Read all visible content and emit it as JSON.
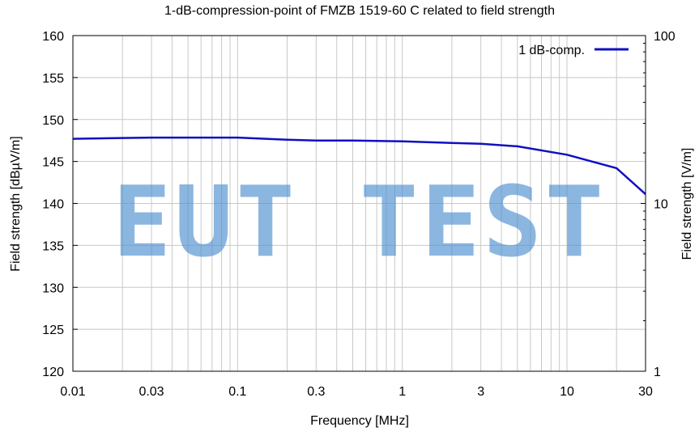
{
  "chart_data": {
    "type": "line",
    "title": "1-dB-compression-point of FMZB 1519-60 C related to field strength",
    "xlabel": "Frequency [MHz]",
    "ylabel": "Field strength [dBµV/m]",
    "y2label": "Field strength [V/m]",
    "xscale": "log",
    "xlim": [
      0.01,
      30
    ],
    "ylim": [
      120,
      160
    ],
    "y2scale": "log",
    "y2lim": [
      1,
      100
    ],
    "grid": true,
    "legend_position": "top-right",
    "x_ticks": [
      {
        "value": 0.01,
        "label": "0.01"
      },
      {
        "value": 0.03,
        "label": "0.03"
      },
      {
        "value": 0.1,
        "label": "0.1"
      },
      {
        "value": 0.3,
        "label": "0.3"
      },
      {
        "value": 1,
        "label": "1"
      },
      {
        "value": 3,
        "label": "3"
      },
      {
        "value": 10,
        "label": "10"
      },
      {
        "value": 30,
        "label": "30"
      }
    ],
    "y_ticks": [
      {
        "value": 120,
        "label": "120"
      },
      {
        "value": 125,
        "label": "125"
      },
      {
        "value": 130,
        "label": "130"
      },
      {
        "value": 135,
        "label": "135"
      },
      {
        "value": 140,
        "label": "140"
      },
      {
        "value": 145,
        "label": "145"
      },
      {
        "value": 150,
        "label": "150"
      },
      {
        "value": 155,
        "label": "155"
      },
      {
        "value": 160,
        "label": "160"
      }
    ],
    "y2_ticks": [
      {
        "value": 1,
        "label": "1"
      },
      {
        "value": 10,
        "label": "10"
      },
      {
        "value": 100,
        "label": "100"
      }
    ],
    "series": [
      {
        "name": "1 dB-comp.",
        "color": "#1010c0",
        "x": [
          0.01,
          0.02,
          0.03,
          0.05,
          0.1,
          0.2,
          0.3,
          0.5,
          1,
          2,
          3,
          5,
          10,
          20,
          30
        ],
        "y": [
          147.7,
          147.8,
          147.85,
          147.85,
          147.85,
          147.6,
          147.5,
          147.5,
          147.4,
          147.2,
          147.1,
          146.8,
          145.8,
          144.2,
          141.1
        ]
      }
    ]
  },
  "watermark": "EUT TEST"
}
